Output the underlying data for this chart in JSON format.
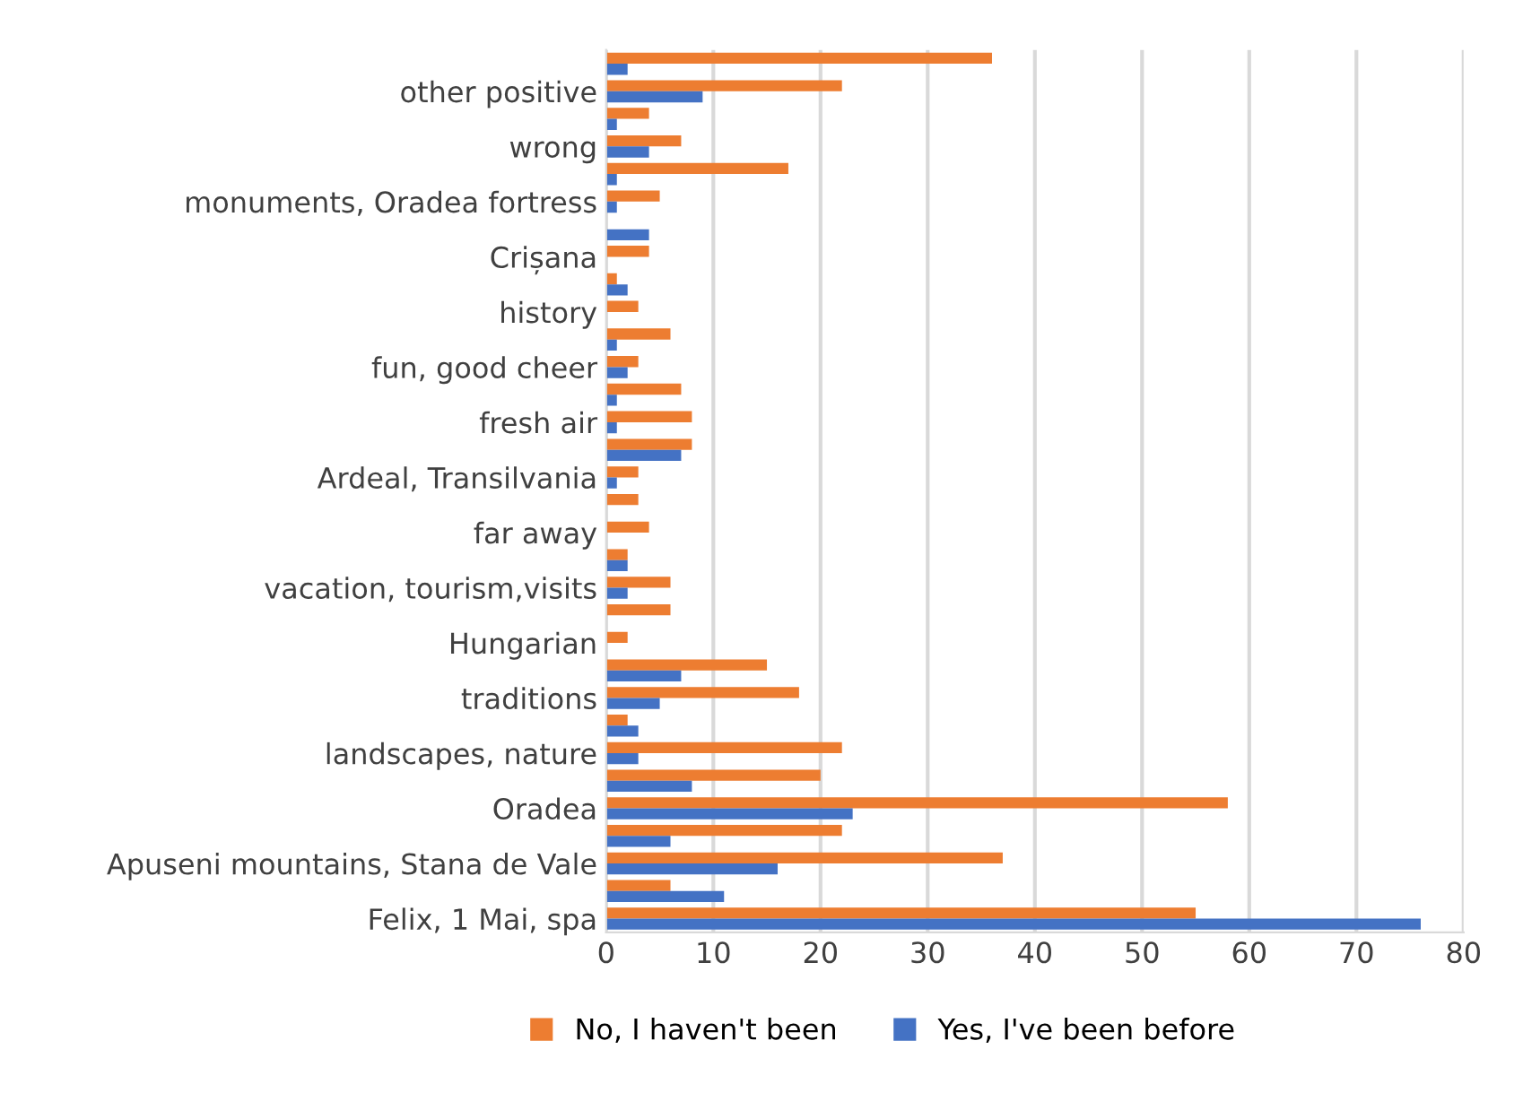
{
  "chart_data": {
    "type": "bar",
    "orientation": "horizontal",
    "categories": [
      null,
      "other positive",
      null,
      "wrong",
      null,
      "monuments, Oradea fortress",
      null,
      "Crișana",
      null,
      "history",
      null,
      "fun, good cheer",
      null,
      "fresh air",
      null,
      "Ardeal, Transilvania",
      null,
      "far away",
      null,
      "vacation, tourism,visits",
      null,
      "Hungarian",
      null,
      "traditions",
      null,
      "landscapes, nature",
      null,
      "Oradea",
      null,
      "Apuseni mountains, Stana de Vale",
      null,
      "Felix, 1 Mai, spa"
    ],
    "series": [
      {
        "name": "No, I haven't been",
        "color": "#ed7d31",
        "values": [
          36,
          22,
          4,
          7,
          17,
          5,
          0,
          4,
          1,
          3,
          6,
          3,
          7,
          8,
          8,
          3,
          3,
          4,
          2,
          6,
          6,
          2,
          15,
          18,
          2,
          22,
          20,
          58,
          22,
          37,
          6,
          55
        ]
      },
      {
        "name": "Yes, I've been before",
        "color": "#4472c4",
        "values": [
          2,
          9,
          1,
          4,
          1,
          1,
          4,
          0,
          2,
          0,
          1,
          2,
          1,
          1,
          7,
          1,
          0,
          0,
          2,
          2,
          0,
          0,
          7,
          5,
          3,
          3,
          8,
          23,
          6,
          16,
          11,
          76
        ]
      }
    ],
    "xlim": [
      0,
      80
    ],
    "xticks": [
      0,
      10,
      20,
      30,
      40,
      50,
      60,
      70,
      80
    ],
    "grid": "x",
    "legend": "bottom"
  }
}
